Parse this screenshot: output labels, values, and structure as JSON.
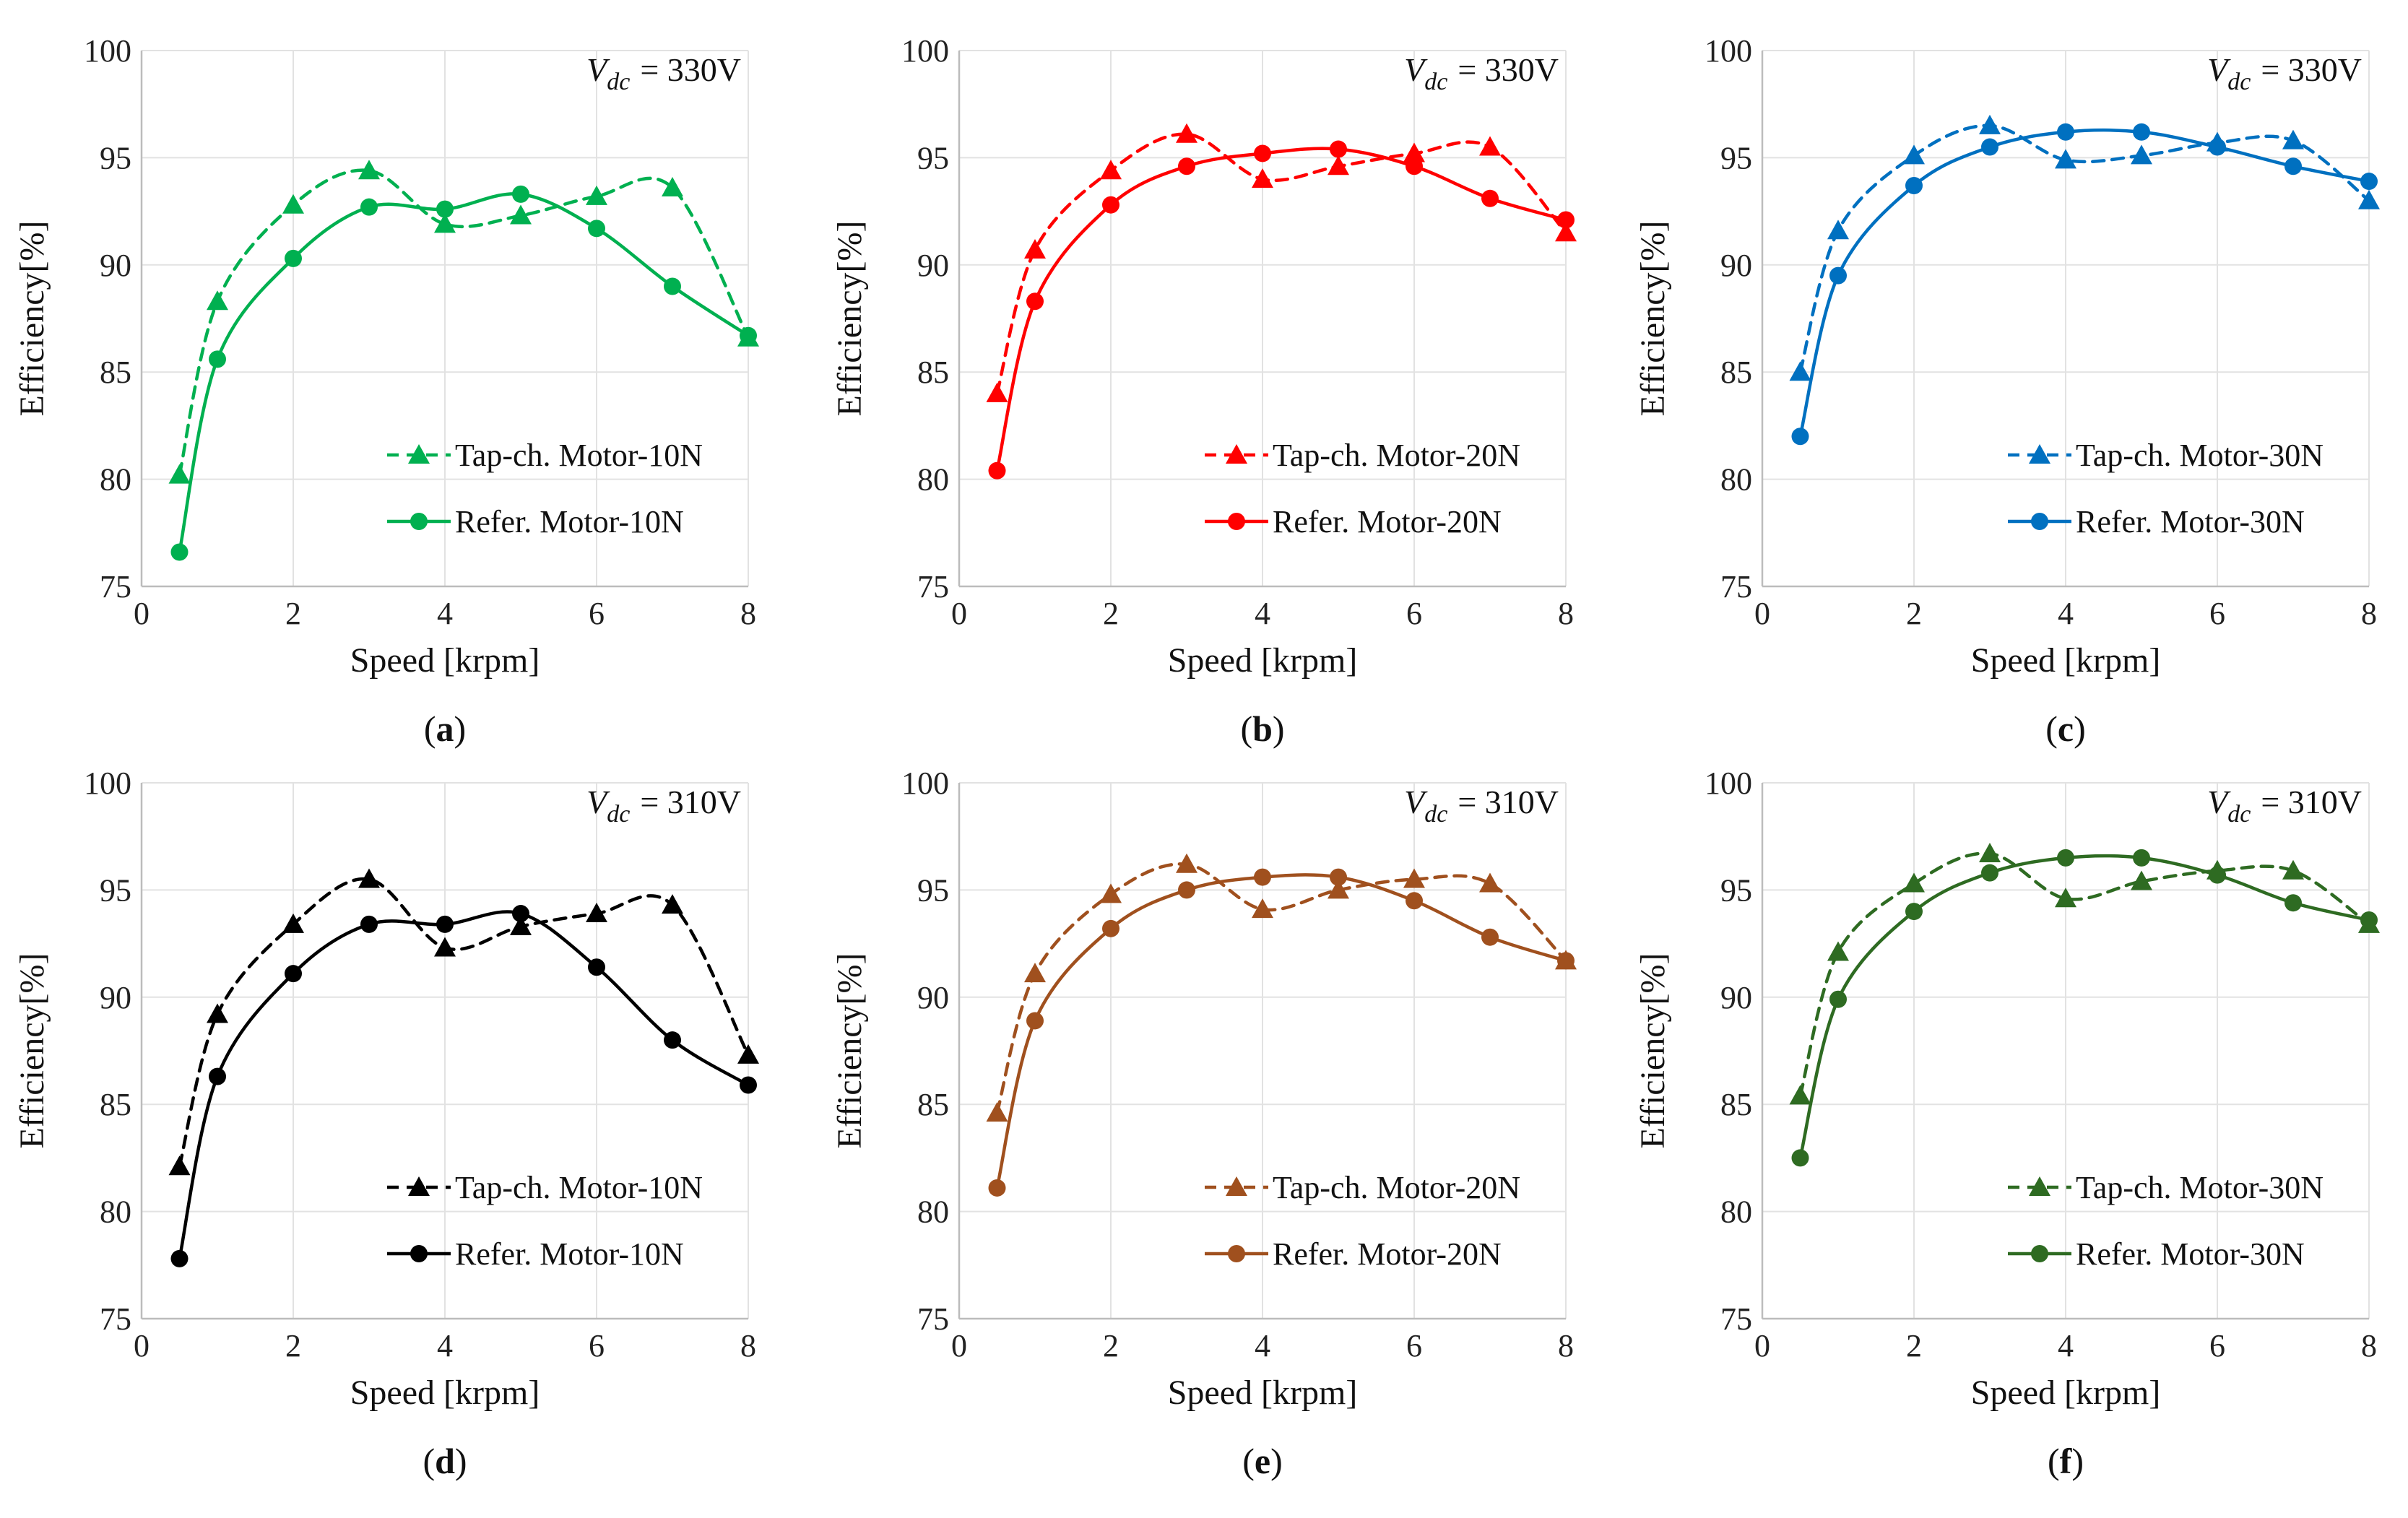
{
  "chart_data": [
    {
      "type": "line",
      "panel": "(a)",
      "caption_letter": "a",
      "vdc_label": "= 330V",
      "vdc_symbol": "V",
      "vdc_subscript": "dc",
      "color": "#00b050",
      "xlabel": "Speed [krpm]",
      "ylabel": "Efficiency[%]",
      "xlim": [
        0,
        8
      ],
      "ylim": [
        75,
        100
      ],
      "xticks": [
        "0",
        "2",
        "4",
        "6",
        "8"
      ],
      "yticks": [
        "75",
        "80",
        "85",
        "90",
        "95",
        "100"
      ],
      "series": [
        {
          "name": "Tap-ch. Motor-10N",
          "style": "dashed",
          "marker": "triangle",
          "x": [
            0.5,
            1,
            2,
            3,
            4,
            5,
            6,
            7,
            8
          ],
          "values": [
            80.2,
            88.3,
            92.8,
            94.4,
            91.9,
            92.3,
            93.2,
            93.6,
            86.6
          ]
        },
        {
          "name": "Refer. Motor-10N",
          "style": "solid",
          "marker": "circle",
          "x": [
            0.5,
            1,
            2,
            3,
            4,
            5,
            6,
            7,
            8
          ],
          "values": [
            76.6,
            85.6,
            90.3,
            92.7,
            92.6,
            93.3,
            91.7,
            89.0,
            86.7
          ]
        }
      ]
    },
    {
      "type": "line",
      "panel": "(b)",
      "caption_letter": "b",
      "vdc_label": "= 330V",
      "vdc_symbol": "V",
      "vdc_subscript": "dc",
      "color": "#ff0000",
      "xlabel": "Speed [krpm]",
      "ylabel": "Efficiency[%]",
      "xlim": [
        0,
        8
      ],
      "ylim": [
        75,
        100
      ],
      "xticks": [
        "0",
        "2",
        "4",
        "6",
        "8"
      ],
      "yticks": [
        "75",
        "80",
        "85",
        "90",
        "95",
        "100"
      ],
      "series": [
        {
          "name": "Tap-ch. Motor-20N",
          "style": "dashed",
          "marker": "triangle",
          "x": [
            0.5,
            1,
            2,
            3,
            4,
            5,
            6,
            7,
            8
          ],
          "values": [
            84.0,
            90.7,
            94.4,
            96.1,
            94.0,
            94.6,
            95.2,
            95.5,
            91.5
          ]
        },
        {
          "name": "Refer. Motor-20N",
          "style": "solid",
          "marker": "circle",
          "x": [
            0.5,
            1,
            2,
            3,
            4,
            5,
            6,
            7,
            8
          ],
          "values": [
            80.4,
            88.3,
            92.8,
            94.6,
            95.2,
            95.4,
            94.6,
            93.1,
            92.1
          ]
        }
      ]
    },
    {
      "type": "line",
      "panel": "(c)",
      "caption_letter": "c",
      "vdc_label": "= 330V",
      "vdc_symbol": "V",
      "vdc_subscript": "dc",
      "color": "#0070c0",
      "xlabel": "Speed [krpm]",
      "ylabel": "Efficiency[%]",
      "xlim": [
        0,
        8
      ],
      "ylim": [
        75,
        100
      ],
      "xticks": [
        "0",
        "2",
        "4",
        "6",
        "8"
      ],
      "yticks": [
        "75",
        "80",
        "85",
        "90",
        "95",
        "100"
      ],
      "series": [
        {
          "name": "Tap-ch. Motor-30N",
          "style": "dashed",
          "marker": "triangle",
          "x": [
            0.5,
            1,
            2,
            3,
            4,
            5,
            6,
            7,
            8
          ],
          "values": [
            85.0,
            91.6,
            95.1,
            96.5,
            94.9,
            95.1,
            95.7,
            95.8,
            93.0
          ]
        },
        {
          "name": "Refer. Motor-30N",
          "style": "solid",
          "marker": "circle",
          "x": [
            0.5,
            1,
            2,
            3,
            4,
            5,
            6,
            7,
            8
          ],
          "values": [
            82.0,
            89.5,
            93.7,
            95.5,
            96.2,
            96.2,
            95.5,
            94.6,
            93.9
          ]
        }
      ]
    },
    {
      "type": "line",
      "panel": "(d)",
      "caption_letter": "d",
      "vdc_label": "= 310V",
      "vdc_symbol": "V",
      "vdc_subscript": "dc",
      "color": "#000000",
      "xlabel": "Speed [krpm]",
      "ylabel": "Efficiency[%]",
      "xlim": [
        0,
        8
      ],
      "ylim": [
        75,
        100
      ],
      "xticks": [
        "0",
        "2",
        "4",
        "6",
        "8"
      ],
      "yticks": [
        "75",
        "80",
        "85",
        "90",
        "95",
        "100"
      ],
      "series": [
        {
          "name": "Tap-ch. Motor-10N",
          "style": "dashed",
          "marker": "triangle",
          "x": [
            0.5,
            1,
            2,
            3,
            4,
            5,
            6,
            7,
            8
          ],
          "values": [
            82.1,
            89.2,
            93.4,
            95.5,
            92.3,
            93.3,
            93.9,
            94.3,
            87.3
          ]
        },
        {
          "name": "Refer. Motor-10N",
          "style": "solid",
          "marker": "circle",
          "x": [
            0.5,
            1,
            2,
            3,
            4,
            5,
            6,
            7,
            8
          ],
          "values": [
            77.8,
            86.3,
            91.1,
            93.4,
            93.4,
            93.9,
            91.4,
            88.0,
            85.9
          ]
        }
      ]
    },
    {
      "type": "line",
      "panel": "(e)",
      "caption_letter": "e",
      "vdc_label": "= 310V",
      "vdc_symbol": "V",
      "vdc_subscript": "dc",
      "color": "#a0501e",
      "xlabel": "Speed [krpm]",
      "ylabel": "Efficiency[%]",
      "xlim": [
        0,
        8
      ],
      "ylim": [
        75,
        100
      ],
      "xticks": [
        "0",
        "2",
        "4",
        "6",
        "8"
      ],
      "yticks": [
        "75",
        "80",
        "85",
        "90",
        "95",
        "100"
      ],
      "series": [
        {
          "name": "Tap-ch. Motor-20N",
          "style": "dashed",
          "marker": "triangle",
          "x": [
            0.5,
            1,
            2,
            3,
            4,
            5,
            6,
            7,
            8
          ],
          "values": [
            84.6,
            91.1,
            94.8,
            96.2,
            94.1,
            95.0,
            95.5,
            95.3,
            91.7
          ]
        },
        {
          "name": "Refer. Motor-20N",
          "style": "solid",
          "marker": "circle",
          "x": [
            0.5,
            1,
            2,
            3,
            4,
            5,
            6,
            7,
            8
          ],
          "values": [
            81.1,
            88.9,
            93.2,
            95.0,
            95.6,
            95.6,
            94.5,
            92.8,
            91.7
          ]
        }
      ]
    },
    {
      "type": "line",
      "panel": "(f)",
      "caption_letter": "f",
      "vdc_label": "= 310V",
      "vdc_symbol": "V",
      "vdc_subscript": "dc",
      "color": "#2e6b22",
      "xlabel": "Speed [krpm]",
      "ylabel": "Efficiency[%]",
      "xlim": [
        0,
        8
      ],
      "ylim": [
        75,
        100
      ],
      "xticks": [
        "0",
        "2",
        "4",
        "6",
        "8"
      ],
      "yticks": [
        "75",
        "80",
        "85",
        "90",
        "95",
        "100"
      ],
      "series": [
        {
          "name": "Tap-ch. Motor-30N",
          "style": "dashed",
          "marker": "triangle",
          "x": [
            0.5,
            1,
            2,
            3,
            4,
            5,
            6,
            7,
            8
          ],
          "values": [
            85.4,
            92.1,
            95.3,
            96.7,
            94.6,
            95.4,
            95.9,
            95.9,
            93.4
          ]
        },
        {
          "name": "Refer. Motor-30N",
          "style": "solid",
          "marker": "circle",
          "x": [
            0.5,
            1,
            2,
            3,
            4,
            5,
            6,
            7,
            8
          ],
          "values": [
            82.5,
            89.9,
            94.0,
            95.8,
            96.5,
            96.5,
            95.7,
            94.4,
            93.6
          ]
        }
      ]
    }
  ]
}
